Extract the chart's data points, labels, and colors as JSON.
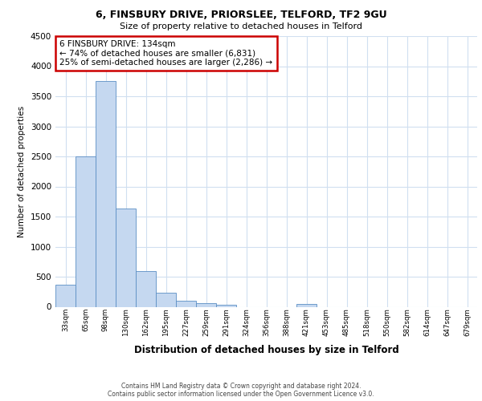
{
  "title_line1": "6, FINSBURY DRIVE, PRIORSLEE, TELFORD, TF2 9GU",
  "title_line2": "Size of property relative to detached houses in Telford",
  "xlabel": "Distribution of detached houses by size in Telford",
  "ylabel": "Number of detached properties",
  "categories": [
    "33sqm",
    "65sqm",
    "98sqm",
    "130sqm",
    "162sqm",
    "195sqm",
    "227sqm",
    "259sqm",
    "291sqm",
    "324sqm",
    "356sqm",
    "388sqm",
    "421sqm",
    "453sqm",
    "485sqm",
    "518sqm",
    "550sqm",
    "582sqm",
    "614sqm",
    "647sqm",
    "679sqm"
  ],
  "values": [
    370,
    2500,
    3750,
    1640,
    590,
    230,
    100,
    60,
    30,
    0,
    0,
    0,
    50,
    0,
    0,
    0,
    0,
    0,
    0,
    0,
    0
  ],
  "bar_color": "#c5d8f0",
  "bar_edge_color": "#5b8ec4",
  "plot_bg_color": "#ffffff",
  "fig_bg_color": "#ffffff",
  "grid_color": "#d0dff0",
  "ann_line1": "6 FINSBURY DRIVE: 134sqm",
  "ann_line2": "← 74% of detached houses are smaller (6,831)",
  "ann_line3": "25% of semi-detached houses are larger (2,286) →",
  "ann_box_edgecolor": "#cc0000",
  "ylim": [
    0,
    4500
  ],
  "yticks": [
    0,
    500,
    1000,
    1500,
    2000,
    2500,
    3000,
    3500,
    4000,
    4500
  ],
  "footer_line1": "Contains HM Land Registry data © Crown copyright and database right 2024.",
  "footer_line2": "Contains public sector information licensed under the Open Government Licence v3.0."
}
